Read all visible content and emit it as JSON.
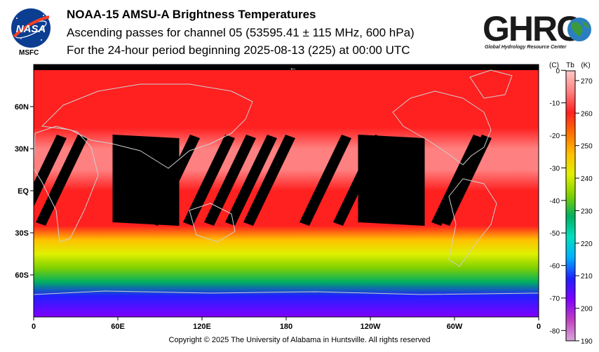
{
  "header": {
    "title": "NOAA-15 AMSU-A Brightness Temperatures",
    "subtitle": "Ascending passes for channel 05 (53595.41 ± 115 MHz, 600 hPa)",
    "period": "For the 24-hour period beginning 2025-08-13 (225) at 00:00 UTC",
    "nasa_logo_text": "NASA",
    "nasa_center": "MSFC",
    "ghrc_logo_text": "GHRC",
    "ghrc_full_name": "Global Hydrology Resource Center"
  },
  "footer": {
    "copyright": "Copyright © 2025 The University of Alabama in Huntsville.  All rights reserved"
  },
  "chart_data": {
    "type": "heatmap",
    "map_projection": "equirectangular",
    "x_ticks": [
      "0",
      "60E",
      "120E",
      "180",
      "120W",
      "60W",
      "0"
    ],
    "y_ticks": [
      "60N",
      "30N",
      "EQ",
      "30S",
      "60S"
    ],
    "colorbar": {
      "celsius_label": "(C)",
      "kelvin_label": "Tb",
      "kelvin_unit": "(K)",
      "celsius_ticks": [
        "0",
        "-10",
        "-20",
        "-30",
        "-40",
        "-50",
        "-60",
        "-70",
        "-80"
      ],
      "kelvin_ticks": [
        "270",
        "260",
        "250",
        "240",
        "230",
        "220",
        "210",
        "200",
        "190"
      ],
      "kelvin_range": [
        190,
        273
      ],
      "colors": [
        "#d8a8d8",
        "#c040c0",
        "#8000ff",
        "#2020ff",
        "#00b0ff",
        "#00e0c0",
        "#00b060",
        "#80d000",
        "#e0f000",
        "#ffc000",
        "#ff7000",
        "#ff2020",
        "#ff8080",
        "#ffc8c8"
      ]
    },
    "latitude_profile": [
      {
        "lat": 90,
        "tb": 262
      },
      {
        "lat": 80,
        "tb": 262
      },
      {
        "lat": 70,
        "tb": 258
      },
      {
        "lat": 60,
        "tb": 260
      },
      {
        "lat": 45,
        "tb": 262
      },
      {
        "lat": 30,
        "tb": 266
      },
      {
        "lat": 15,
        "tb": 264
      },
      {
        "lat": 0,
        "tb": 262
      },
      {
        "lat": -15,
        "tb": 262
      },
      {
        "lat": -25,
        "tb": 258
      },
      {
        "lat": -35,
        "tb": 250
      },
      {
        "lat": -45,
        "tb": 242
      },
      {
        "lat": -55,
        "tb": 236
      },
      {
        "lat": -65,
        "tb": 226
      },
      {
        "lat": -75,
        "tb": 208
      },
      {
        "lat": -90,
        "tb": 205
      }
    ],
    "data_gaps_longitude": [
      5,
      20,
      80,
      100,
      125,
      140,
      155,
      168,
      208,
      232,
      255,
      302,
      308
    ],
    "pole_arrow": "←"
  }
}
